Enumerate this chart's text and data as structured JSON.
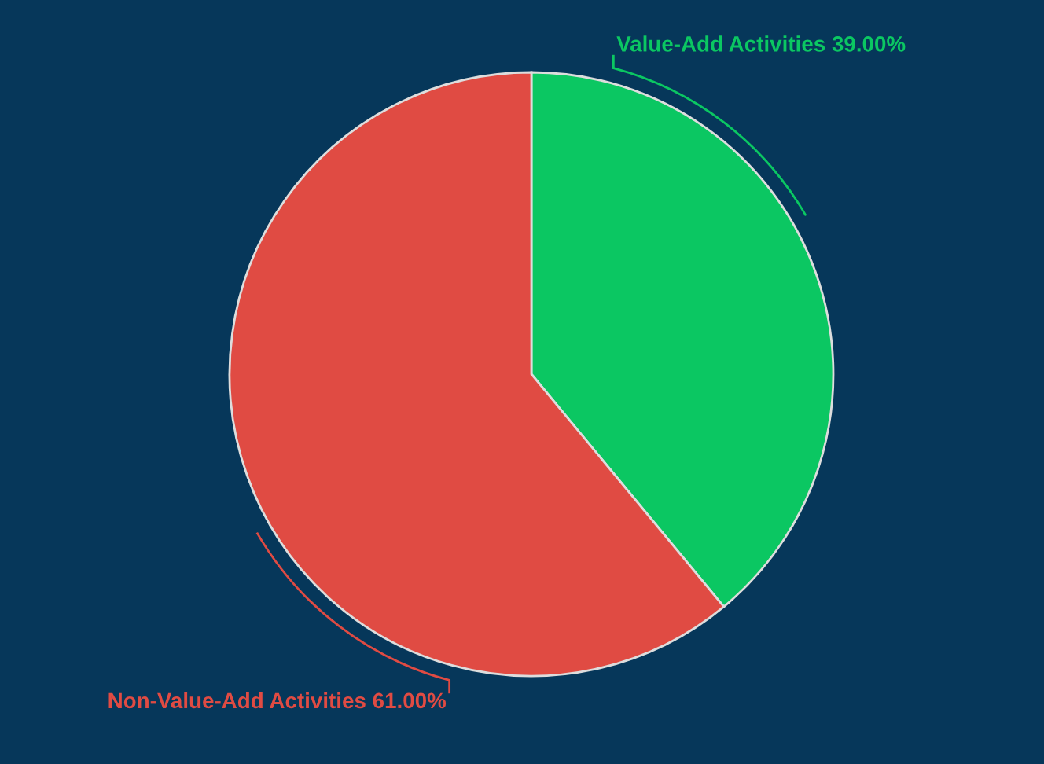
{
  "chart_data": {
    "type": "pie",
    "categories": [
      "Value-Add Activities",
      "Non-Value-Add Activities"
    ],
    "values": [
      39,
      61
    ],
    "value_labels": [
      "39.00%",
      "61.00%"
    ],
    "colors": [
      "#0bc762",
      "#e04b43"
    ],
    "legend": false
  }
}
